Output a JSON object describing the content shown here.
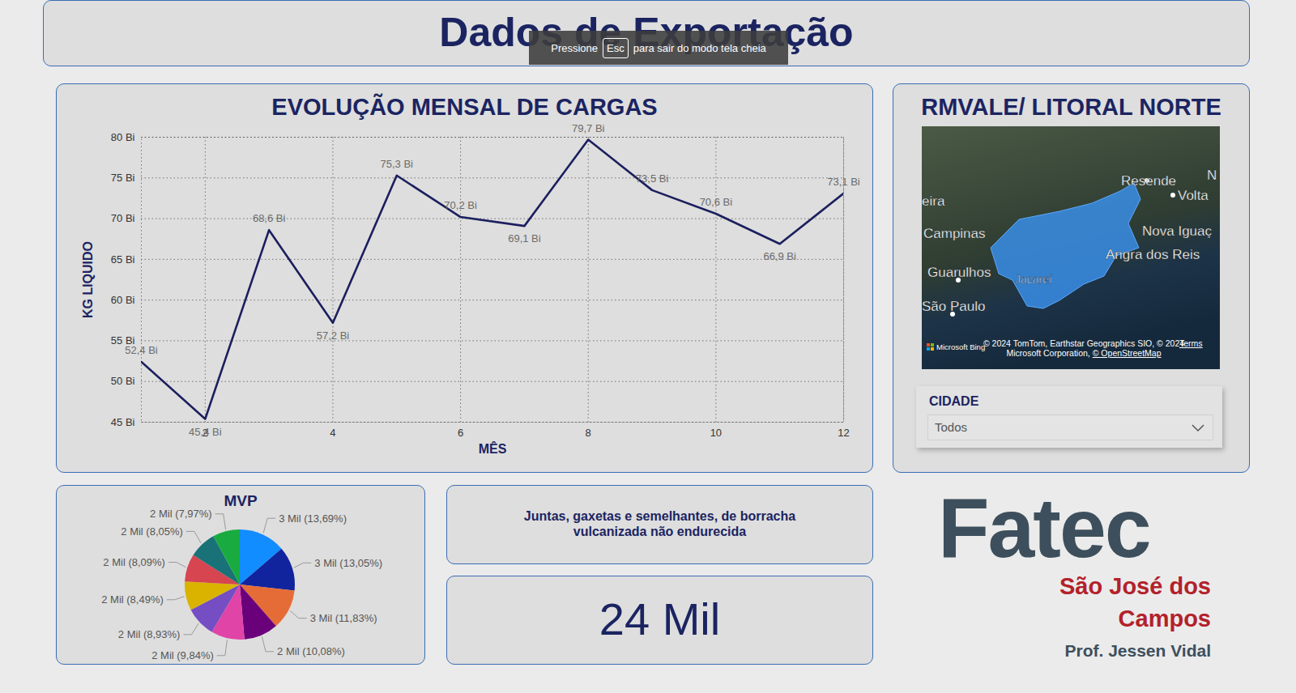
{
  "header": {
    "title": "Dados de Exportação"
  },
  "overlay": {
    "before": "Pressione",
    "key": "Esc",
    "after": "para sair do modo tela cheia"
  },
  "chart_data": [
    {
      "type": "line",
      "title": "EVOLUÇÃO MENSAL DE CARGAS",
      "x_label": "MÊS",
      "y_label": "KG LIQUIDO",
      "x": [
        1,
        2,
        3,
        4,
        5,
        6,
        7,
        8,
        9,
        10,
        11,
        12
      ],
      "values": [
        52.4,
        45.4,
        68.6,
        57.2,
        75.3,
        70.2,
        69.1,
        79.7,
        73.5,
        70.6,
        66.9,
        73.1
      ],
      "value_labels": [
        "52,4 Bi",
        "45,4 Bi",
        "68,6 Bi",
        "57,2 Bi",
        "75,3 Bi",
        "70,2 Bi",
        "69,1 Bi",
        "79,7 Bi",
        "73,5 Bi",
        "70,6 Bi",
        "66,9 Bi",
        "73,1 Bi"
      ],
      "color": "#1b1f5e",
      "xlim": [
        1,
        12
      ],
      "xticks": [
        2,
        4,
        6,
        8,
        10,
        12
      ],
      "ylim": [
        45,
        80
      ],
      "yticks": [
        {
          "value": 45,
          "label": "45 Bi"
        },
        {
          "value": 50,
          "label": "50 Bi"
        },
        {
          "value": 55,
          "label": "55 Bi"
        },
        {
          "value": 60,
          "label": "60 Bi"
        },
        {
          "value": 65,
          "label": "65 Bi"
        },
        {
          "value": 70,
          "label": "70 Bi"
        },
        {
          "value": 75,
          "label": "75 Bi"
        },
        {
          "value": 80,
          "label": "80 Bi"
        }
      ],
      "grid": true,
      "data_labels": true,
      "marker": "none"
    },
    {
      "type": "pie",
      "title": "MVP",
      "values": [
        13.69,
        13.05,
        11.83,
        10.08,
        9.84,
        8.93,
        8.49,
        8.09,
        8.05,
        7.97
      ],
      "value_labels": [
        "3 Mil (13,69%)",
        "3 Mil (13,05%)",
        "3 Mil (11,83%)",
        "2 Mil (10,08%)",
        "2 Mil (9,84%)",
        "2 Mil (8,93%)",
        "2 Mil (8,49%)",
        "2 Mil (8,09%)",
        "2 Mil (8,05%)",
        "2 Mil (7,97%)"
      ],
      "colors": [
        "#118dff",
        "#12239e",
        "#e66c37",
        "#6b007b",
        "#e044a7",
        "#744ec2",
        "#d9b300",
        "#d64550",
        "#197278",
        "#1aab40"
      ],
      "data_labels": true
    }
  ],
  "map": {
    "title": "RMVALE/ LITORAL NORTE",
    "labels": [
      "eira",
      "Campinas",
      "Resende",
      "Volta",
      "N",
      "Nova Iguaç",
      "Angra dos Reis",
      "Guarulhos",
      "Jacareí",
      "São Paulo"
    ],
    "attribution": [
      "© 2024 TomTom, Earthstar Geographics SIO, © 2024",
      "Microsoft Corporation,"
    ],
    "attribution_link": "© OpenStreetMap",
    "terms": "Terms",
    "brand": "Microsoft Bing"
  },
  "filter": {
    "label": "CIDADE",
    "value": "Todos"
  },
  "cards": {
    "product": "Juntas, gaxetas e semelhantes, de borracha vulcanizada não endurecida",
    "total": "24 Mil"
  },
  "logo": {
    "name": "Fatec",
    "city": "São José dos Campos",
    "author": "Prof. Jessen Vidal"
  }
}
